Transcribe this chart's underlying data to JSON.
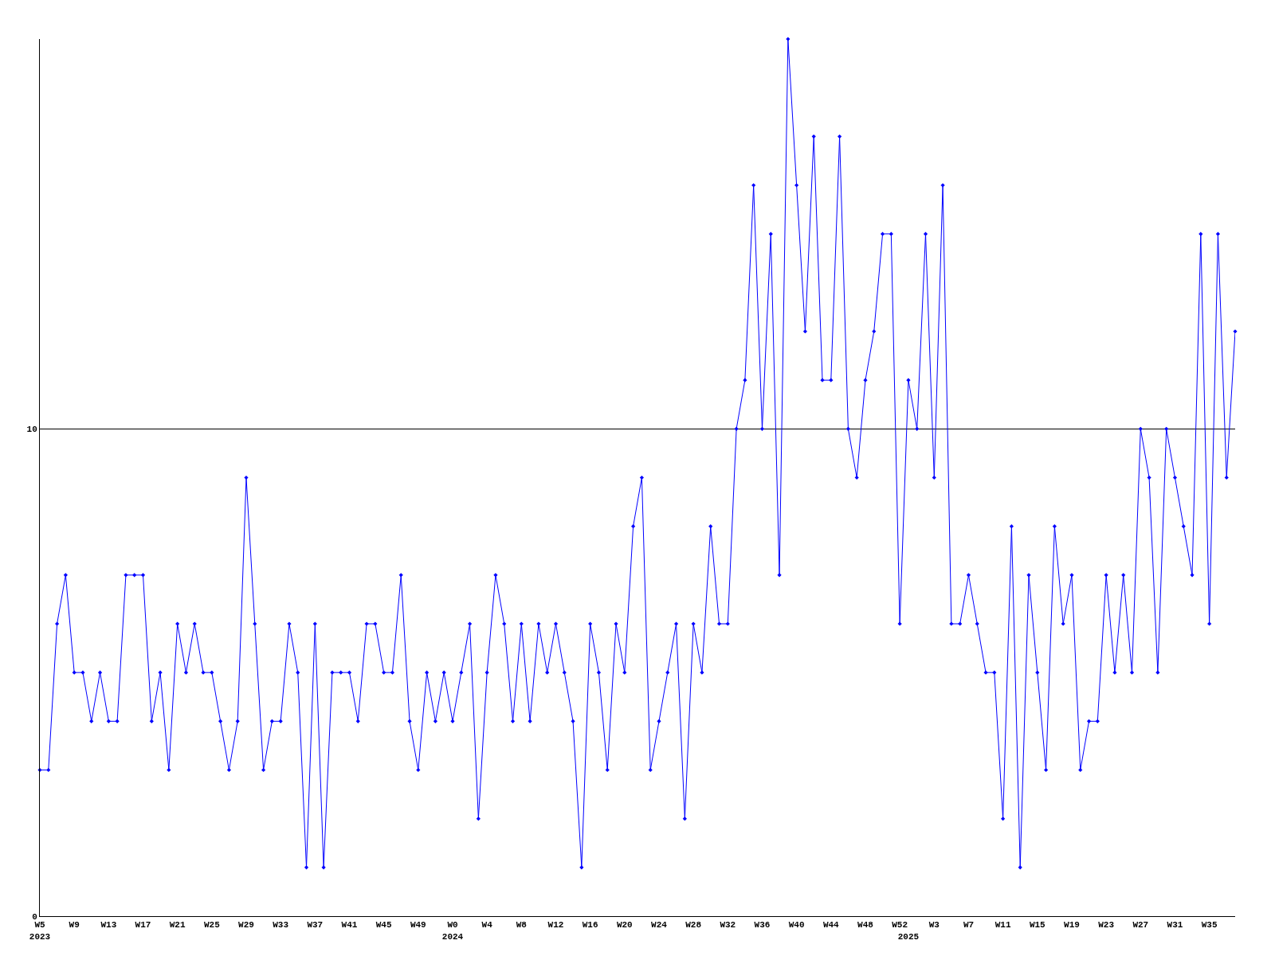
{
  "chart_data": {
    "type": "line",
    "categories": [
      "W5\n2023",
      null,
      null,
      null,
      "W9",
      null,
      null,
      null,
      "W13",
      null,
      null,
      null,
      "W17",
      null,
      null,
      null,
      "W21",
      null,
      null,
      null,
      "W25",
      null,
      null,
      null,
      "W29",
      null,
      null,
      null,
      "W33",
      null,
      null,
      null,
      "W37",
      null,
      null,
      null,
      "W41",
      null,
      null,
      null,
      "W45",
      null,
      null,
      null,
      "W49",
      null,
      null,
      null,
      "W0\n2024",
      null,
      null,
      null,
      "W4",
      null,
      null,
      null,
      "W8",
      null,
      null,
      null,
      "W12",
      null,
      null,
      null,
      "W16",
      null,
      null,
      null,
      "W20",
      null,
      null,
      null,
      "W24",
      null,
      null,
      null,
      "W28",
      null,
      null,
      null,
      "W32",
      null,
      null,
      null,
      "W36",
      null,
      null,
      null,
      "W40",
      null,
      null,
      null,
      "W44",
      null,
      null,
      null,
      "W48",
      null,
      null,
      null,
      "W52",
      "\n2025",
      null,
      null,
      "W3",
      null,
      null,
      null,
      "W7",
      null,
      null,
      null,
      "W11",
      null,
      null,
      null,
      "W15",
      null,
      null,
      null,
      "W19",
      null,
      null,
      null,
      "W23",
      null,
      null,
      null,
      "W27",
      null,
      null,
      null,
      "W31",
      null,
      null,
      null,
      "W35",
      null,
      null,
      null
    ],
    "series": [
      {
        "color": "#0000ff",
        "values": [
          3,
          3,
          6,
          7,
          5,
          5,
          4,
          5,
          4,
          4,
          7,
          7,
          7,
          4,
          5,
          3,
          6,
          5,
          6,
          5,
          5,
          4,
          3,
          4,
          9,
          6,
          3,
          4,
          4,
          6,
          5,
          1,
          6,
          1,
          5,
          5,
          5,
          4,
          6,
          6,
          5,
          5,
          7,
          4,
          3,
          5,
          4,
          5,
          4,
          5,
          6,
          2,
          5,
          7,
          6,
          4,
          6,
          4,
          6,
          5,
          6,
          5,
          4,
          1,
          6,
          5,
          3,
          6,
          5,
          8,
          9,
          3,
          4,
          5,
          6,
          2,
          6,
          5,
          8,
          6,
          6,
          10,
          11,
          15,
          10,
          14,
          7,
          18,
          15,
          12,
          16,
          11,
          11,
          16,
          10,
          9,
          11,
          12,
          14,
          14,
          6,
          11,
          10,
          14,
          9,
          15,
          6,
          6,
          7,
          6,
          5,
          5,
          2,
          8,
          1,
          7,
          5,
          3,
          8,
          6,
          7,
          3,
          4,
          4,
          7,
          5,
          7,
          5,
          10,
          9,
          5,
          10,
          9,
          8,
          7,
          14,
          6,
          14,
          9,
          12
        ]
      }
    ],
    "ylim": [
      0,
      18
    ],
    "yticks": [
      0,
      10
    ],
    "grid": "y",
    "legend": false,
    "marker": "diamond",
    "line_style": "solid"
  }
}
